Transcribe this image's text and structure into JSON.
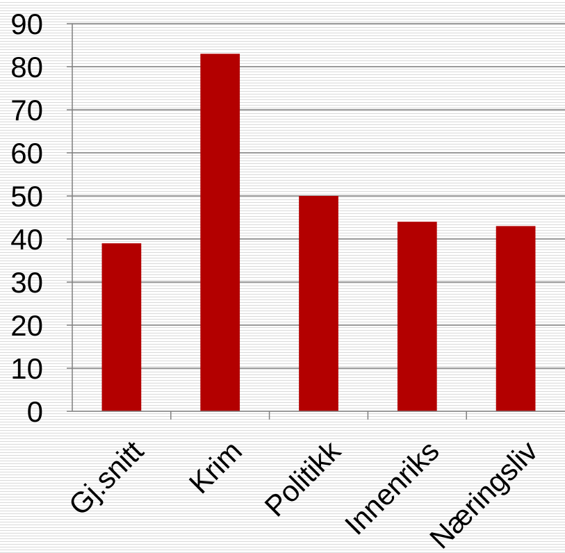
{
  "chart_data": {
    "type": "bar",
    "categories": [
      "Gj.snitt",
      "Krim",
      "Politikk",
      "Innenriks",
      "Næringsliv"
    ],
    "values": [
      39,
      83,
      50,
      44,
      43
    ],
    "title": "",
    "xlabel": "",
    "ylabel": "",
    "ylim": [
      0,
      90
    ],
    "yticks": [
      "0",
      "10",
      "20",
      "30",
      "40",
      "50",
      "60",
      "70",
      "80",
      "90"
    ],
    "grid": true,
    "legend": "none",
    "bar_color": "#b30000",
    "gridline_color": "#7f7f7f",
    "axis_color": "#7f7f7f"
  }
}
